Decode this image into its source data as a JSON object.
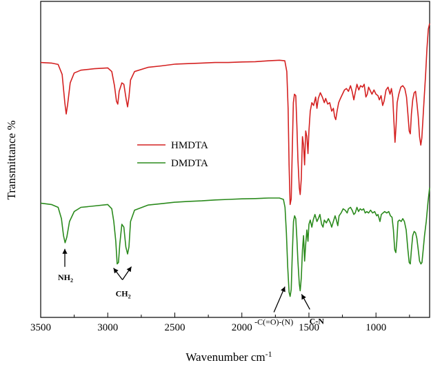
{
  "chart_data": {
    "type": "line",
    "xlabel": "Wavenumber cm",
    "xlabel_sup": "-1",
    "ylabel": "Transmittance %",
    "xlim": [
      3500,
      600
    ],
    "x_reversed": true,
    "ylim": [
      0,
      100
    ],
    "xticks": [
      3500,
      3000,
      2500,
      2000,
      1500,
      1000
    ],
    "grid": false,
    "legend": {
      "placement": "center-left",
      "entries": [
        "HMDTA",
        "DMDTA"
      ]
    },
    "series": [
      {
        "name": "HMDTA",
        "color": "#d42020",
        "points": [
          [
            3500,
            86.2
          ],
          [
            3420,
            86.0
          ],
          [
            3370,
            85.5
          ],
          [
            3340,
            82.0
          ],
          [
            3320,
            72.0
          ],
          [
            3310,
            68.0
          ],
          [
            3300,
            71.0
          ],
          [
            3280,
            79.0
          ],
          [
            3250,
            82.5
          ],
          [
            3200,
            83.5
          ],
          [
            3100,
            84.0
          ],
          [
            3000,
            84.3
          ],
          [
            2970,
            83.0
          ],
          [
            2950,
            78.0
          ],
          [
            2935,
            72.5
          ],
          [
            2925,
            71.5
          ],
          [
            2915,
            76.0
          ],
          [
            2895,
            79.0
          ],
          [
            2880,
            78.5
          ],
          [
            2862,
            73.0
          ],
          [
            2852,
            70.5
          ],
          [
            2842,
            74.0
          ],
          [
            2830,
            80.0
          ],
          [
            2800,
            83.0
          ],
          [
            2700,
            84.5
          ],
          [
            2600,
            85.0
          ],
          [
            2500,
            85.6
          ],
          [
            2400,
            85.8
          ],
          [
            2300,
            86.0
          ],
          [
            2200,
            86.2
          ],
          [
            2100,
            86.2
          ],
          [
            2000,
            86.4
          ],
          [
            1900,
            86.5
          ],
          [
            1800,
            86.8
          ],
          [
            1720,
            87.0
          ],
          [
            1680,
            86.8
          ],
          [
            1665,
            83.0
          ],
          [
            1655,
            70.0
          ],
          [
            1648,
            50.0
          ],
          [
            1640,
            36.0
          ],
          [
            1632,
            38.0
          ],
          [
            1624,
            55.0
          ],
          [
            1616,
            72.0
          ],
          [
            1608,
            75.0
          ],
          [
            1598,
            74.5
          ],
          [
            1590,
            64.0
          ],
          [
            1582,
            52.0
          ],
          [
            1572,
            42.0
          ],
          [
            1565,
            39.5
          ],
          [
            1557,
            45.0
          ],
          [
            1548,
            60.0
          ],
          [
            1540,
            57.0
          ],
          [
            1532,
            50.0
          ],
          [
            1524,
            62.0
          ],
          [
            1515,
            60.0
          ],
          [
            1507,
            54.0
          ],
          [
            1500,
            62.0
          ],
          [
            1490,
            69.0
          ],
          [
            1478,
            72.0
          ],
          [
            1465,
            71.0
          ],
          [
            1450,
            74.0
          ],
          [
            1440,
            70.0
          ],
          [
            1430,
            73.5
          ],
          [
            1415,
            75.5
          ],
          [
            1400,
            74.0
          ],
          [
            1385,
            72.0
          ],
          [
            1375,
            73.5
          ],
          [
            1360,
            71.5
          ],
          [
            1345,
            72.0
          ],
          [
            1330,
            69.0
          ],
          [
            1318,
            70.0
          ],
          [
            1308,
            67.0
          ],
          [
            1300,
            66.0
          ],
          [
            1290,
            69.0
          ],
          [
            1278,
            72.0
          ],
          [
            1265,
            73.5
          ],
          [
            1250,
            75.0
          ],
          [
            1235,
            76.5
          ],
          [
            1220,
            77.0
          ],
          [
            1205,
            76.0
          ],
          [
            1190,
            78.0
          ],
          [
            1178,
            76.0
          ],
          [
            1165,
            73.0
          ],
          [
            1155,
            75.5
          ],
          [
            1142,
            78.5
          ],
          [
            1128,
            76.5
          ],
          [
            1115,
            78.0
          ],
          [
            1100,
            77.5
          ],
          [
            1088,
            78.5
          ],
          [
            1075,
            74.0
          ],
          [
            1065,
            75.0
          ],
          [
            1055,
            77.5
          ],
          [
            1040,
            76.0
          ],
          [
            1030,
            75.0
          ],
          [
            1015,
            76.5
          ],
          [
            1000,
            75.0
          ],
          [
            985,
            74.5
          ],
          [
            975,
            73.0
          ],
          [
            962,
            74.5
          ],
          [
            950,
            71.0
          ],
          [
            940,
            72.5
          ],
          [
            925,
            76.5
          ],
          [
            910,
            77.5
          ],
          [
            895,
            75.0
          ],
          [
            885,
            77.0
          ],
          [
            875,
            74.0
          ],
          [
            866,
            65.0
          ],
          [
            858,
            58.0
          ],
          [
            850,
            64.0
          ],
          [
            842,
            72.0
          ],
          [
            830,
            75.0
          ],
          [
            815,
            77.5
          ],
          [
            800,
            78.0
          ],
          [
            785,
            77.0
          ],
          [
            772,
            74.0
          ],
          [
            762,
            68.0
          ],
          [
            752,
            62.0
          ],
          [
            744,
            61.0
          ],
          [
            736,
            68.0
          ],
          [
            726,
            73.0
          ],
          [
            715,
            75.5
          ],
          [
            705,
            76.0
          ],
          [
            695,
            72.0
          ],
          [
            685,
            67.0
          ],
          [
            675,
            60.0
          ],
          [
            666,
            57.0
          ],
          [
            658,
            59.5
          ],
          [
            650,
            66.0
          ],
          [
            640,
            74.0
          ],
          [
            630,
            82.0
          ],
          [
            620,
            91.0
          ],
          [
            610,
            98.0
          ],
          [
            600,
            100.0
          ]
        ]
      },
      {
        "name": "DMDTA",
        "color": "#2a8a1c",
        "points": [
          [
            3500,
            36.5
          ],
          [
            3420,
            36.0
          ],
          [
            3370,
            35.0
          ],
          [
            3345,
            31.0
          ],
          [
            3330,
            25.0
          ],
          [
            3318,
            22.5
          ],
          [
            3305,
            24.5
          ],
          [
            3285,
            30.0
          ],
          [
            3250,
            33.5
          ],
          [
            3200,
            35.0
          ],
          [
            3100,
            35.5
          ],
          [
            3000,
            36.0
          ],
          [
            2970,
            34.5
          ],
          [
            2955,
            30.0
          ],
          [
            2940,
            23.0
          ],
          [
            2930,
            15.0
          ],
          [
            2920,
            15.5
          ],
          [
            2910,
            22.0
          ],
          [
            2895,
            29.0
          ],
          [
            2880,
            28.0
          ],
          [
            2865,
            21.0
          ],
          [
            2852,
            18.5
          ],
          [
            2842,
            21.0
          ],
          [
            2830,
            30.0
          ],
          [
            2800,
            34.0
          ],
          [
            2700,
            35.8
          ],
          [
            2600,
            36.3
          ],
          [
            2500,
            36.8
          ],
          [
            2400,
            37.1
          ],
          [
            2300,
            37.3
          ],
          [
            2200,
            37.6
          ],
          [
            2100,
            37.8
          ],
          [
            2000,
            38.0
          ],
          [
            1900,
            38.1
          ],
          [
            1800,
            38.3
          ],
          [
            1720,
            38.3
          ],
          [
            1690,
            37.8
          ],
          [
            1678,
            35.0
          ],
          [
            1668,
            26.0
          ],
          [
            1658,
            14.0
          ],
          [
            1648,
            5.0
          ],
          [
            1640,
            3.5
          ],
          [
            1632,
            6.0
          ],
          [
            1624,
            18.0
          ],
          [
            1615,
            30.0
          ],
          [
            1607,
            32.0
          ],
          [
            1598,
            31.0
          ],
          [
            1590,
            24.0
          ],
          [
            1582,
            16.0
          ],
          [
            1572,
            8.0
          ],
          [
            1565,
            5.5
          ],
          [
            1557,
            10.0
          ],
          [
            1548,
            20.0
          ],
          [
            1540,
            25.0
          ],
          [
            1532,
            16.0
          ],
          [
            1524,
            22.0
          ],
          [
            1515,
            27.0
          ],
          [
            1507,
            23.0
          ],
          [
            1500,
            29.0
          ],
          [
            1490,
            30.5
          ],
          [
            1478,
            28.0
          ],
          [
            1468,
            30.5
          ],
          [
            1455,
            32.5
          ],
          [
            1440,
            30.0
          ],
          [
            1430,
            31.0
          ],
          [
            1418,
            32.5
          ],
          [
            1405,
            29.0
          ],
          [
            1395,
            28.0
          ],
          [
            1385,
            30.5
          ],
          [
            1370,
            29.5
          ],
          [
            1355,
            31.0
          ],
          [
            1340,
            29.5
          ],
          [
            1330,
            28.0
          ],
          [
            1318,
            30.0
          ],
          [
            1305,
            32.0
          ],
          [
            1295,
            30.5
          ],
          [
            1285,
            28.5
          ],
          [
            1275,
            32.0
          ],
          [
            1260,
            33.0
          ],
          [
            1245,
            34.5
          ],
          [
            1230,
            34.0
          ],
          [
            1215,
            33.0
          ],
          [
            1205,
            34.5
          ],
          [
            1190,
            35.0
          ],
          [
            1178,
            34.0
          ],
          [
            1165,
            32.5
          ],
          [
            1155,
            33.0
          ],
          [
            1142,
            35.0
          ],
          [
            1130,
            33.5
          ],
          [
            1118,
            34.5
          ],
          [
            1105,
            34.0
          ],
          [
            1092,
            34.5
          ],
          [
            1080,
            33.0
          ],
          [
            1068,
            33.5
          ],
          [
            1055,
            33.0
          ],
          [
            1040,
            34.0
          ],
          [
            1025,
            33.0
          ],
          [
            1010,
            33.5
          ],
          [
            995,
            32.0
          ],
          [
            985,
            32.5
          ],
          [
            970,
            30.0
          ],
          [
            960,
            32.5
          ],
          [
            948,
            33.0
          ],
          [
            935,
            33.5
          ],
          [
            920,
            33.0
          ],
          [
            905,
            33.5
          ],
          [
            892,
            32.0
          ],
          [
            880,
            31.5
          ],
          [
            870,
            27.0
          ],
          [
            860,
            20.0
          ],
          [
            852,
            19.0
          ],
          [
            845,
            23.0
          ],
          [
            836,
            30.0
          ],
          [
            825,
            30.5
          ],
          [
            812,
            30.0
          ],
          [
            800,
            31.0
          ],
          [
            788,
            30.0
          ],
          [
            775,
            27.0
          ],
          [
            762,
            20.0
          ],
          [
            752,
            15.5
          ],
          [
            744,
            15.0
          ],
          [
            736,
            20.0
          ],
          [
            726,
            25.0
          ],
          [
            715,
            26.5
          ],
          [
            705,
            26.0
          ],
          [
            695,
            24.0
          ],
          [
            685,
            20.0
          ],
          [
            675,
            16.0
          ],
          [
            665,
            15.0
          ],
          [
            657,
            15.5
          ],
          [
            648,
            20.0
          ],
          [
            638,
            25.0
          ],
          [
            625,
            30.0
          ],
          [
            612,
            37.0
          ],
          [
            600,
            42.0
          ]
        ]
      }
    ],
    "annotations": [
      {
        "id": "nh2",
        "base": "NH",
        "sub": "2",
        "x": 3320,
        "y": 22.5
      },
      {
        "id": "ch2",
        "base": "CH",
        "sub": "2",
        "x": 2880,
        "y": 15.0
      },
      {
        "id": "amide",
        "text": "-C(=O)-(N)",
        "x": 1648,
        "y": 5.0
      },
      {
        "id": "cn",
        "text": "C-N",
        "x": 1565,
        "y": 5.5
      }
    ]
  }
}
